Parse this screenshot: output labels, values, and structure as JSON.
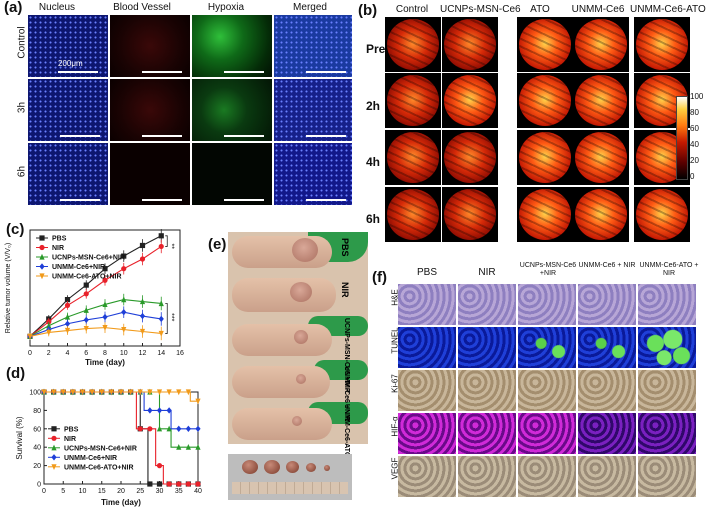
{
  "panel_a": {
    "label": "(a)",
    "columns": [
      "Nucleus",
      "Blood Vessel",
      "Hypoxia",
      "Merged"
    ],
    "rows": [
      "Control",
      "3h",
      "6h"
    ],
    "scale": "200μm"
  },
  "panel_b": {
    "label": "(b)",
    "columns": [
      "Control",
      "UCNPs-MSN-Ce6",
      "ATO",
      "UNMM-Ce6",
      "UNMM-Ce6-ATO"
    ],
    "rows": [
      "Pre",
      "2h",
      "4h",
      "6h"
    ],
    "colorbar_ticks": [
      "100",
      "80",
      "60",
      "40",
      "20",
      "0"
    ]
  },
  "panel_c": {
    "label": "(c)"
  },
  "panel_d": {
    "label": "(d)"
  },
  "panel_e": {
    "label": "(e)",
    "groups": [
      "PBS",
      "NIR",
      "UCNPs-MSN-Ce6 +NIR",
      "UNMM-Ce6 +NIR",
      "UNMM-Ce6-ATO +NIR"
    ]
  },
  "panel_f": {
    "label": "(f)",
    "columns": [
      "PBS",
      "NIR",
      "UCNPs-MSN-Ce6 +NIR",
      "UNMM-Ce6 + NIR",
      "UNMM-Ce6-ATO + NIR"
    ],
    "rows": [
      "H&E",
      "TUNEL",
      "Ki-67",
      "HIF-α",
      "VEGF"
    ]
  },
  "chart_data": [
    {
      "type": "line",
      "title": "(c)",
      "xlabel": "Time (day)",
      "ylabel": "Relative tumor volume (V/V₀)",
      "xlim": [
        0,
        16
      ],
      "ylim": [
        0,
        12
      ],
      "xticks": [
        0,
        2,
        4,
        6,
        8,
        10,
        12,
        14,
        16
      ],
      "x": [
        0,
        2,
        4,
        6,
        8,
        10,
        12,
        14
      ],
      "series": [
        {
          "name": "PBS",
          "color": "#222222",
          "marker": "square",
          "values": [
            1,
            2.8,
            4.8,
            6.3,
            8.0,
            9.3,
            10.4,
            11.4
          ]
        },
        {
          "name": "NIR",
          "color": "#e8212a",
          "marker": "circle",
          "values": [
            1,
            2.5,
            4.2,
            5.4,
            6.8,
            8.0,
            9.0,
            10.3
          ]
        },
        {
          "name": "UCNPs-MSN-Ce6+NIR",
          "color": "#2a9a2a",
          "marker": "triangle",
          "values": [
            1,
            2.1,
            3.0,
            3.7,
            4.3,
            4.8,
            4.6,
            4.4
          ]
        },
        {
          "name": "UNMM-Ce6+NIR",
          "color": "#1f3fd8",
          "marker": "diamond",
          "values": [
            1,
            1.7,
            2.3,
            2.7,
            3.0,
            3.5,
            3.1,
            2.8
          ]
        },
        {
          "name": "UNMM-Ce6-ATO+NIR",
          "color": "#f19a1a",
          "marker": "triangle-down",
          "values": [
            1,
            1.4,
            1.6,
            1.8,
            1.9,
            1.7,
            1.5,
            1.3
          ]
        }
      ],
      "annotations": [
        "**",
        "***"
      ]
    },
    {
      "type": "line",
      "title": "(d)",
      "xlabel": "Time (day)",
      "ylabel": "Survival (%)",
      "xlim": [
        0,
        40
      ],
      "ylim": [
        0,
        100
      ],
      "xticks": [
        0,
        5,
        10,
        15,
        20,
        25,
        30,
        35,
        40
      ],
      "yticks": [
        0,
        20,
        40,
        60,
        80,
        100
      ],
      "series": [
        {
          "name": "PBS",
          "color": "#222222",
          "x": [
            0,
            25,
            25,
            27,
            27,
            40
          ],
          "values": [
            100,
            100,
            60,
            60,
            0,
            0
          ]
        },
        {
          "name": "NIR",
          "color": "#e8212a",
          "x": [
            0,
            24,
            24,
            29,
            29,
            31,
            31,
            40
          ],
          "values": [
            100,
            100,
            60,
            60,
            20,
            20,
            0,
            0
          ]
        },
        {
          "name": "UCNPs-MSN-Ce6+NIR",
          "color": "#2a9a2a",
          "x": [
            0,
            30,
            30,
            33,
            33,
            40
          ],
          "values": [
            100,
            100,
            60,
            60,
            40,
            40
          ]
        },
        {
          "name": "UNMM-Ce6+NIR",
          "color": "#1f3fd8",
          "x": [
            0,
            26,
            26,
            33,
            33,
            35,
            35,
            40
          ],
          "values": [
            100,
            100,
            80,
            80,
            60,
            60,
            60,
            60
          ]
        },
        {
          "name": "UNMM-Ce6-ATO+NIR",
          "color": "#f19a1a",
          "x": [
            0,
            33,
            33,
            38,
            38,
            40
          ],
          "values": [
            100,
            100,
            100,
            100,
            90,
            90
          ]
        }
      ]
    }
  ]
}
